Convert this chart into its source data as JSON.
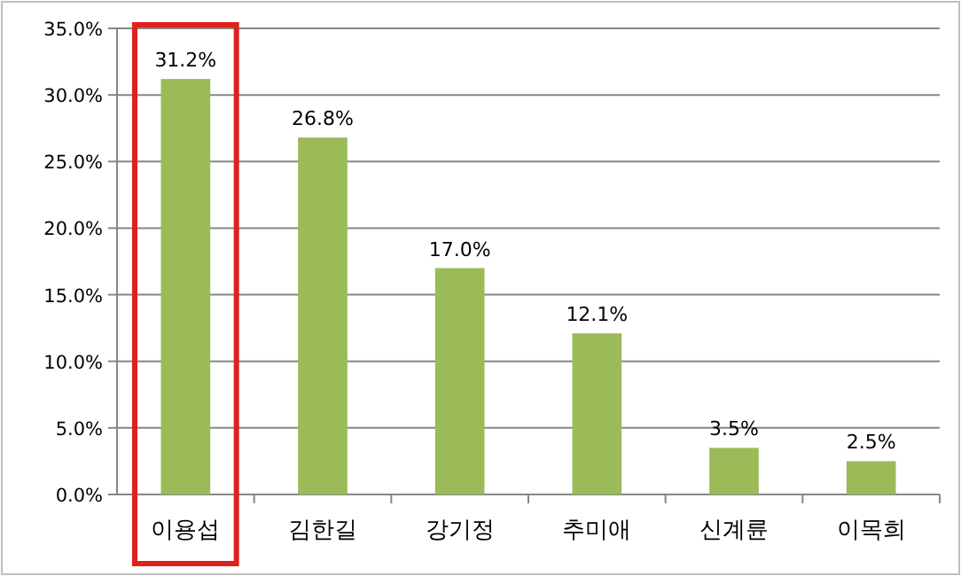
{
  "chart_data": {
    "type": "bar",
    "categories": [
      "이용섭",
      "김한길",
      "강기정",
      "추미애",
      "신계륜",
      "이목희"
    ],
    "values": [
      31.2,
      26.8,
      17.0,
      12.1,
      3.5,
      2.5
    ],
    "value_labels": [
      "31.2%",
      "26.8%",
      "17.0%",
      "12.1%",
      "3.5%",
      "2.5%"
    ],
    "color": "#9bbb59",
    "ylim": [
      0,
      35
    ],
    "yticks": [
      {
        "value": 0,
        "label": "0.0%"
      },
      {
        "value": 5,
        "label": "5.0%"
      },
      {
        "value": 10,
        "label": "10.0%"
      },
      {
        "value": 15,
        "label": "15.0%"
      },
      {
        "value": 20,
        "label": "20.0%"
      },
      {
        "value": 25,
        "label": "25.0%"
      },
      {
        "value": 30,
        "label": "30.0%"
      },
      {
        "value": 35,
        "label": "35.0%"
      }
    ],
    "grid": "y"
  }
}
